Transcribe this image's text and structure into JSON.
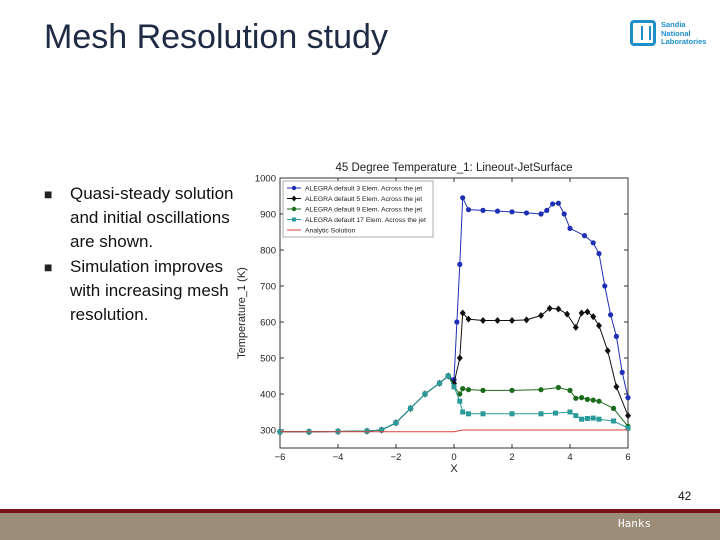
{
  "slide": {
    "title": "Mesh Resolution study",
    "bullets": [
      "Quasi-steady solution and initial oscillations are shown.",
      "Simulation improves with increasing mesh resolution."
    ],
    "page_number": "42",
    "author": "Hanks",
    "logo_lines": [
      "Sandia",
      "National",
      "Laboratories"
    ],
    "bullet_mark_icon": "square-bullet-icon",
    "colors": {
      "title": "#1f2a44",
      "footer_red": "#7a1315",
      "footer_band": "#9c8d79",
      "logo": "#1e8fc9"
    }
  },
  "chart_data": {
    "type": "line",
    "title": "45 Degree Temperature_1: Lineout-JetSurface",
    "xlabel": "X",
    "ylabel": "Temperature_1 (K)",
    "xlim": [
      -6,
      6
    ],
    "ylim": [
      250,
      1000
    ],
    "xticks": [
      -6,
      -4,
      -2,
      0,
      2,
      4,
      6
    ],
    "yticks": [
      300,
      400,
      500,
      600,
      700,
      800,
      900,
      1000
    ],
    "grid": false,
    "legend": "top-left",
    "series": [
      {
        "name": "ALEGRA default 3 Elem. Across the jet",
        "color": "#1f2fb5",
        "marker": "circle",
        "x": [
          -6,
          -5,
          -4,
          -3,
          -2.5,
          -2,
          -1.5,
          -1,
          -0.5,
          -0.2,
          0,
          0.1,
          0.2,
          0.3,
          0.5,
          1,
          1.5,
          2,
          2.5,
          3,
          3.2,
          3.4,
          3.6,
          3.8,
          4,
          4.5,
          4.8,
          5,
          5.2,
          5.4,
          5.6,
          5.8,
          6
        ],
        "y": [
          295,
          295,
          296,
          297,
          300,
          320,
          360,
          400,
          430,
          450,
          440,
          600,
          760,
          945,
          912,
          910,
          908,
          906,
          903,
          900,
          910,
          928,
          930,
          900,
          860,
          840,
          820,
          790,
          700,
          620,
          560,
          460,
          390
        ]
      },
      {
        "name": "ALEGRA default 5 Elem. Across the jet",
        "color": "#111111",
        "marker": "diamond",
        "x": [
          -6,
          -5,
          -4,
          -3,
          -2.5,
          -2,
          -1.5,
          -1,
          -0.5,
          -0.2,
          0,
          0.2,
          0.3,
          0.5,
          1,
          1.5,
          2,
          2.5,
          3,
          3.3,
          3.6,
          3.9,
          4.2,
          4.4,
          4.6,
          4.8,
          5,
          5.3,
          5.6,
          6
        ],
        "y": [
          295,
          295,
          296,
          297,
          300,
          320,
          360,
          400,
          430,
          450,
          430,
          500,
          625,
          608,
          604,
          604,
          604,
          606,
          618,
          638,
          636,
          622,
          585,
          625,
          628,
          615,
          590,
          520,
          420,
          340
        ]
      },
      {
        "name": "ALEGRA default 9 Elem. Across the jet",
        "color": "#1b6b1b",
        "marker": "circle",
        "x": [
          -6,
          -5,
          -4,
          -3,
          -2.5,
          -2,
          -1.5,
          -1,
          -0.5,
          -0.2,
          0,
          0.2,
          0.3,
          0.5,
          1,
          2,
          3,
          3.6,
          4,
          4.2,
          4.4,
          4.6,
          4.8,
          5,
          5.5,
          6
        ],
        "y": [
          295,
          295,
          296,
          297,
          300,
          320,
          360,
          400,
          430,
          450,
          420,
          400,
          415,
          412,
          410,
          410,
          412,
          418,
          410,
          388,
          390,
          385,
          383,
          380,
          360,
          310
        ]
      },
      {
        "name": "ALEGRA default 17 Elem. Across the jet",
        "color": "#2a9a9a",
        "marker": "square",
        "x": [
          -6,
          -5,
          -4,
          -3,
          -2.5,
          -2,
          -1.5,
          -1,
          -0.5,
          -0.2,
          0,
          0.2,
          0.3,
          0.5,
          1,
          2,
          3,
          3.5,
          4,
          4.2,
          4.4,
          4.6,
          4.8,
          5,
          5.5,
          6
        ],
        "y": [
          295,
          295,
          296,
          297,
          300,
          320,
          360,
          400,
          430,
          450,
          420,
          380,
          350,
          345,
          345,
          345,
          345,
          347,
          350,
          340,
          330,
          332,
          333,
          330,
          325,
          305
        ]
      },
      {
        "name": "Analytic Solution",
        "color": "#d9403a",
        "marker": "none",
        "x": [
          -6,
          -1,
          0,
          0.3,
          0.5,
          6
        ],
        "y": [
          295,
          295,
          295,
          300,
          300,
          300
        ]
      }
    ]
  }
}
